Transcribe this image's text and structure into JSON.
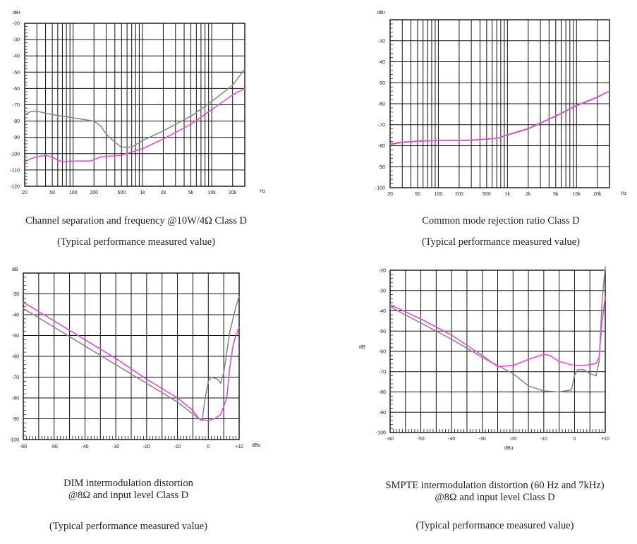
{
  "chart_data": [
    {
      "id": "chart1",
      "type": "line",
      "xscale": "log",
      "title": "Channel separation and frequency @10W/4Ω Class D",
      "subtitle": "(Typical performance measured value)",
      "ylabel": "dBr",
      "xlabel": "Hz",
      "xlim": [
        20,
        30000
      ],
      "ylim": [
        -120,
        -20
      ],
      "yticks": [
        -20,
        -30,
        -40,
        -50,
        -60,
        -70,
        -80,
        -90,
        -100,
        -110,
        -120
      ],
      "ytick_labels": [
        "-20",
        "-30",
        "-40",
        "-50",
        "-60",
        "-70",
        "-80",
        "-90",
        "-100",
        "-110",
        "-120"
      ],
      "xticks": [
        20,
        50,
        100,
        200,
        500,
        1000,
        2000,
        5000,
        10000,
        20000
      ],
      "xtick_labels": [
        "20",
        "50",
        "100",
        "200",
        "500",
        "1k",
        "2k",
        "5k",
        "10k",
        "20k"
      ],
      "series": [
        {
          "name": "gray",
          "color": "#8a8a8a",
          "points": [
            [
              20,
              -76
            ],
            [
              25,
              -74
            ],
            [
              30,
              -74
            ],
            [
              50,
              -76
            ],
            [
              100,
              -78
            ],
            [
              200,
              -80
            ],
            [
              250,
              -83
            ],
            [
              300,
              -88
            ],
            [
              400,
              -93
            ],
            [
              500,
              -96
            ],
            [
              700,
              -96
            ],
            [
              1000,
              -92
            ],
            [
              2000,
              -86
            ],
            [
              5000,
              -77
            ],
            [
              10000,
              -68
            ],
            [
              20000,
              -58
            ],
            [
              30000,
              -48
            ]
          ]
        },
        {
          "name": "magenta",
          "color": "#e84cd8",
          "points": [
            [
              20,
              -105
            ],
            [
              25,
              -103
            ],
            [
              30,
              -102
            ],
            [
              40,
              -101
            ],
            [
              50,
              -102
            ],
            [
              60,
              -104
            ],
            [
              70,
              -105
            ],
            [
              100,
              -104.5
            ],
            [
              180,
              -104.5
            ],
            [
              250,
              -102
            ],
            [
              500,
              -101
            ],
            [
              700,
              -99
            ],
            [
              1000,
              -97
            ],
            [
              2000,
              -91
            ],
            [
              5000,
              -82
            ],
            [
              10000,
              -73
            ],
            [
              20000,
              -64
            ],
            [
              30000,
              -60
            ]
          ]
        }
      ]
    },
    {
      "id": "chart2",
      "type": "line",
      "xscale": "log",
      "title": "Common mode rejection ratio Class D",
      "subtitle": "(Typical performance measured value)",
      "ylabel": "dBr",
      "xlabel": "Hz",
      "xlim": [
        20,
        30000
      ],
      "ylim": [
        -100,
        -20
      ],
      "yticks": [
        -30,
        -40,
        -50,
        -60,
        -70,
        -80,
        -90,
        -100
      ],
      "ytick_labels": [
        "-30",
        "-40",
        "-50",
        "-60",
        "-70",
        "-80",
        "-90",
        "-100"
      ],
      "xticks": [
        20,
        50,
        100,
        200,
        500,
        1000,
        2000,
        5000,
        10000,
        20000
      ],
      "xtick_labels": [
        "20",
        "50",
        "100",
        "200",
        "500",
        "1k",
        "2k",
        "5k",
        "10k",
        "20k"
      ],
      "series": [
        {
          "name": "gray",
          "color": "#8a8a8a",
          "points": [
            [
              20,
              -79.5
            ],
            [
              30,
              -78.5
            ],
            [
              50,
              -78
            ],
            [
              100,
              -77.5
            ],
            [
              300,
              -77.5
            ],
            [
              700,
              -76.5
            ],
            [
              1000,
              -75
            ],
            [
              2000,
              -72
            ],
            [
              5000,
              -66
            ],
            [
              10000,
              -61
            ],
            [
              20000,
              -57
            ],
            [
              30000,
              -54
            ]
          ]
        },
        {
          "name": "magenta",
          "color": "#e84cd8",
          "points": [
            [
              20,
              -79
            ],
            [
              30,
              -78.3
            ],
            [
              50,
              -77.8
            ],
            [
              100,
              -77.5
            ],
            [
              300,
              -77.3
            ],
            [
              700,
              -76.5
            ],
            [
              1000,
              -74.8
            ],
            [
              2000,
              -71.8
            ],
            [
              5000,
              -65.8
            ],
            [
              10000,
              -60.8
            ],
            [
              20000,
              -56.8
            ],
            [
              30000,
              -54
            ]
          ]
        }
      ]
    },
    {
      "id": "chart3",
      "type": "line",
      "xscale": "linear",
      "title": "DIM intermodulation distortion",
      "subtitle_line2": "@8Ω  and input level Class D",
      "subtitle": "(Typical performance measured value)",
      "ylabel": "dB",
      "xlabel": "dBu",
      "xlim": [
        -60,
        10
      ],
      "ylim": [
        -100,
        -20
      ],
      "yticks": [
        -30,
        -40,
        -50,
        -60,
        -70,
        -80,
        -90,
        -100
      ],
      "ytick_labels": [
        "-30",
        "-40",
        "-50",
        "-60",
        "-70",
        "-80",
        "-90",
        "-100"
      ],
      "xticks": [
        -60,
        -50,
        -40,
        -30,
        -20,
        -10,
        0,
        10
      ],
      "xtick_labels": [
        "-60",
        "-50",
        "-40",
        "-30",
        "-20",
        "-10",
        "0",
        "+10"
      ],
      "series": [
        {
          "name": "gray",
          "color": "#8a8a8a",
          "points": [
            [
              -60,
              -37
            ],
            [
              -50,
              -46
            ],
            [
              -40,
              -55
            ],
            [
              -30,
              -64
            ],
            [
              -20,
              -73
            ],
            [
              -10,
              -82
            ],
            [
              -3,
              -90
            ],
            [
              -2,
              -91
            ],
            [
              -1,
              -80
            ],
            [
              0,
              -72
            ],
            [
              1,
              -70
            ],
            [
              3,
              -71
            ],
            [
              4,
              -73
            ],
            [
              5,
              -68
            ],
            [
              7,
              -48
            ],
            [
              9,
              -36
            ],
            [
              10,
              -31
            ]
          ]
        },
        {
          "name": "magenta",
          "color": "#e84cd8",
          "points": [
            [
              -60,
              -34
            ],
            [
              -50,
              -43
            ],
            [
              -40,
              -52
            ],
            [
              -30,
              -61
            ],
            [
              -20,
              -71
            ],
            [
              -10,
              -80
            ],
            [
              -5,
              -86
            ],
            [
              -3,
              -90
            ],
            [
              0,
              -91
            ],
            [
              2,
              -90
            ],
            [
              4,
              -88
            ],
            [
              6,
              -80
            ],
            [
              7,
              -65
            ],
            [
              8,
              -55
            ],
            [
              9,
              -50
            ],
            [
              10,
              -46
            ]
          ]
        }
      ]
    },
    {
      "id": "chart4",
      "type": "line",
      "xscale": "linear",
      "title": "SMPTE intermodulation distortion (60 Hz and 7kHz)",
      "subtitle_line2": "@8Ω and input level Class D",
      "subtitle": "(Typical performance measured value)",
      "ylabel": "dB",
      "xlabel": "dBu",
      "xlim": [
        -60,
        10
      ],
      "ylim": [
        -100,
        -20
      ],
      "yticks": [
        -20,
        -30,
        -40,
        -50,
        -60,
        -70,
        -80,
        -90,
        -100
      ],
      "ytick_labels": [
        "-20",
        "-30",
        "-40",
        "-50",
        "-60",
        "-70",
        "-80",
        "-90",
        "-100"
      ],
      "xticks": [
        -60,
        -50,
        -40,
        -30,
        -20,
        -10,
        0,
        10
      ],
      "xtick_labels": [
        "-60",
        "-50",
        "-40",
        "-30",
        "-20",
        "-10",
        "0",
        "+10"
      ],
      "series": [
        {
          "name": "gray",
          "color": "#8a8a8a",
          "points": [
            [
              -60,
              -38
            ],
            [
              -50,
              -46
            ],
            [
              -40,
              -54
            ],
            [
              -30,
              -63
            ],
            [
              -20,
              -71
            ],
            [
              -15,
              -77
            ],
            [
              -10,
              -79.5
            ],
            [
              -5,
              -80
            ],
            [
              -1,
              -79
            ],
            [
              0,
              -72
            ],
            [
              1,
              -69
            ],
            [
              3,
              -69
            ],
            [
              5,
              -71
            ],
            [
              7,
              -72
            ],
            [
              8,
              -65
            ],
            [
              9,
              -35
            ],
            [
              10,
              -18
            ]
          ]
        },
        {
          "name": "magenta",
          "color": "#e84cd8",
          "points": [
            [
              -60,
              -37
            ],
            [
              -50,
              -44
            ],
            [
              -40,
              -52
            ],
            [
              -30,
              -62
            ],
            [
              -25,
              -67.5
            ],
            [
              -20,
              -67
            ],
            [
              -15,
              -64
            ],
            [
              -10,
              -61.5
            ],
            [
              -8,
              -62
            ],
            [
              -5,
              -65
            ],
            [
              0,
              -67
            ],
            [
              3,
              -67
            ],
            [
              7,
              -66
            ],
            [
              8,
              -63
            ],
            [
              9,
              -45
            ],
            [
              10,
              -33
            ]
          ]
        }
      ]
    }
  ]
}
